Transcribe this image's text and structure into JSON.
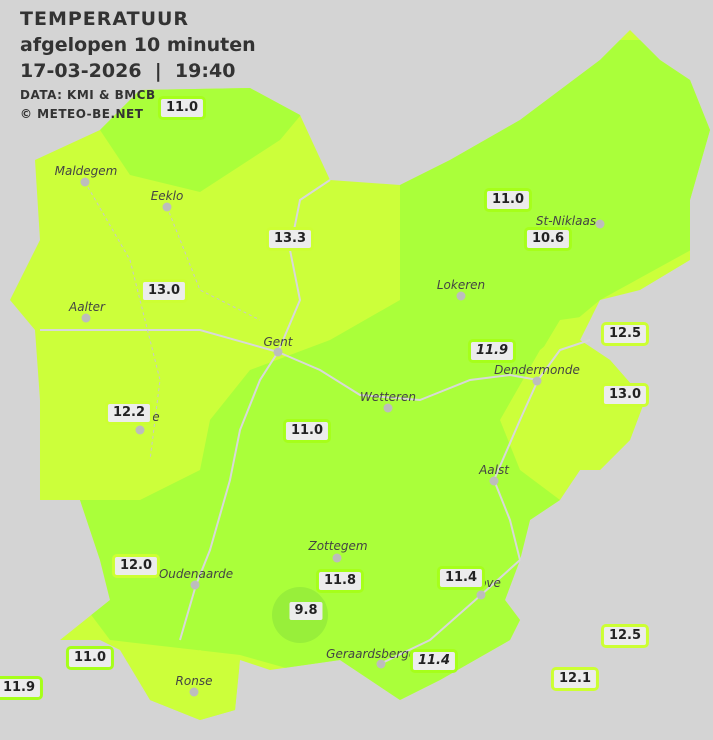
{
  "header": {
    "title": "TEMPERATUUR",
    "subtitle": "afgelopen 10 minuten",
    "datetime": "17-03-2026  |  19:40",
    "source": "DATA: KMI & BMCB",
    "copyright": "© METEO-BE.NET"
  },
  "colors": {
    "background": "#d4d4d4",
    "warm": "#ccff3a",
    "mild": "#aaff3a",
    "cool": "#98ef3a",
    "river": "#d8d8d8"
  },
  "cities": [
    {
      "name": "Maldegem"
    },
    {
      "name": "Eeklo"
    },
    {
      "name": "Aalter"
    },
    {
      "name": "Gent"
    },
    {
      "name": "Lokeren"
    },
    {
      "name": "St-Niklaas"
    },
    {
      "name": "Dendermonde"
    },
    {
      "name": "Wetteren"
    },
    {
      "name": "Aalst"
    },
    {
      "name": "Zottegem"
    },
    {
      "name": "Oudenaarde"
    },
    {
      "name": "Geraardsbergen"
    },
    {
      "name": "Ronse"
    },
    {
      "name": "ove"
    },
    {
      "name": "e"
    }
  ],
  "stations": [
    {
      "value": "11.0"
    },
    {
      "value": "11.0"
    },
    {
      "value": "13.3"
    },
    {
      "value": "10.6"
    },
    {
      "value": "13.0"
    },
    {
      "value": "12.5"
    },
    {
      "value": "11.9",
      "italic": true
    },
    {
      "value": "13.0"
    },
    {
      "value": "12.2"
    },
    {
      "value": "11.0"
    },
    {
      "value": "12.0"
    },
    {
      "value": "11.4"
    },
    {
      "value": "11.8"
    },
    {
      "value": "9.8"
    },
    {
      "value": "12.5"
    },
    {
      "value": "11.0"
    },
    {
      "value": "11.4",
      "italic": true
    },
    {
      "value": "12.1"
    },
    {
      "value": "11.9"
    }
  ]
}
